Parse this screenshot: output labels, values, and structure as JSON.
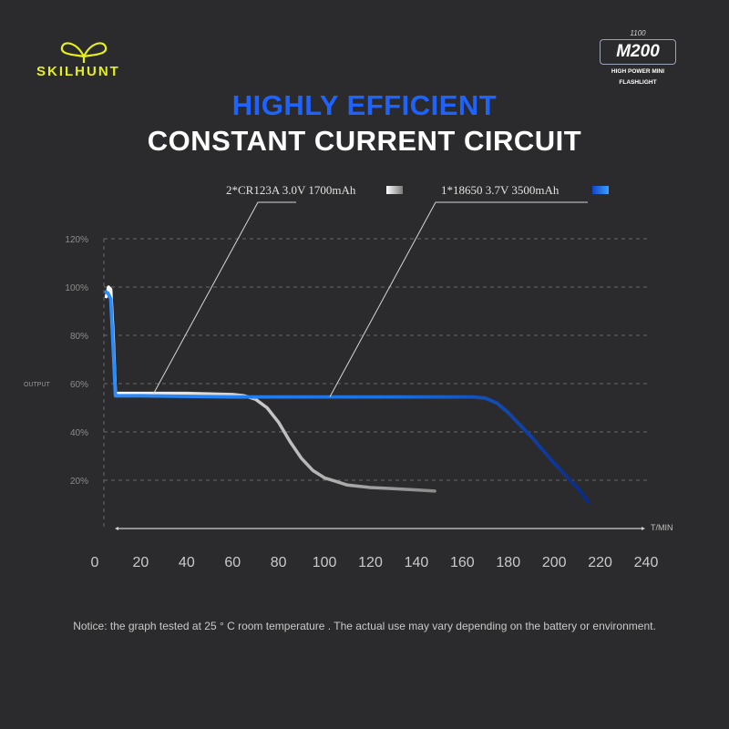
{
  "brand": {
    "name": "SKILHUNT",
    "color": "#e6ef1c"
  },
  "badge": {
    "lumens": "1100",
    "model": "M200",
    "subtitle_line1": "HIGH POWER MINI",
    "subtitle_line2": "FLASHLIGHT"
  },
  "title": {
    "line1": "HIGHLY EFFICIENT",
    "line2": "CONSTANT CURRENT CIRCUIT",
    "accent": "#1f63ff"
  },
  "notice": "Notice: the graph tested at 25 ° C  room temperature . The actual use may vary depending on the battery or environment.",
  "chart_data": {
    "type": "line",
    "ylabel": "OUTPUT",
    "xlabel": "T/MIN",
    "xlim": [
      0,
      240
    ],
    "ylim": [
      0,
      120
    ],
    "x_ticks": [
      "0",
      "20",
      "40",
      "60",
      "80",
      "100",
      "120",
      "140",
      "160",
      "180",
      "200",
      "220",
      "240"
    ],
    "y_ticks": [
      "20%",
      "40%",
      "60%",
      "80%",
      "100%",
      "120%"
    ],
    "grid": "horizontal dashed",
    "series": [
      {
        "name": "2*CR123A 3.0V 1700mAh",
        "color": "#d8d8d8",
        "x": [
          5,
          6,
          7,
          8,
          9,
          20,
          40,
          60,
          65,
          70,
          75,
          80,
          85,
          90,
          95,
          100,
          105,
          110,
          120,
          130,
          140,
          148
        ],
        "y": [
          96,
          100,
          99,
          80,
          56,
          56,
          56,
          55.5,
          55,
          53.5,
          50,
          44,
          36,
          29,
          24,
          21,
          19.5,
          18,
          17,
          16.5,
          16,
          15.5
        ]
      },
      {
        "name": "1*18650 3.7V  3500mAh",
        "color": "#1f63ff",
        "x": [
          5,
          6,
          7,
          8,
          9,
          20,
          60,
          100,
          140,
          165,
          170,
          175,
          180,
          190,
          200,
          210,
          215
        ],
        "y": [
          98,
          97,
          95,
          75,
          55,
          55,
          54.5,
          54.5,
          54.5,
          54.5,
          54,
          52,
          48,
          38,
          27,
          17,
          11
        ]
      }
    ]
  }
}
